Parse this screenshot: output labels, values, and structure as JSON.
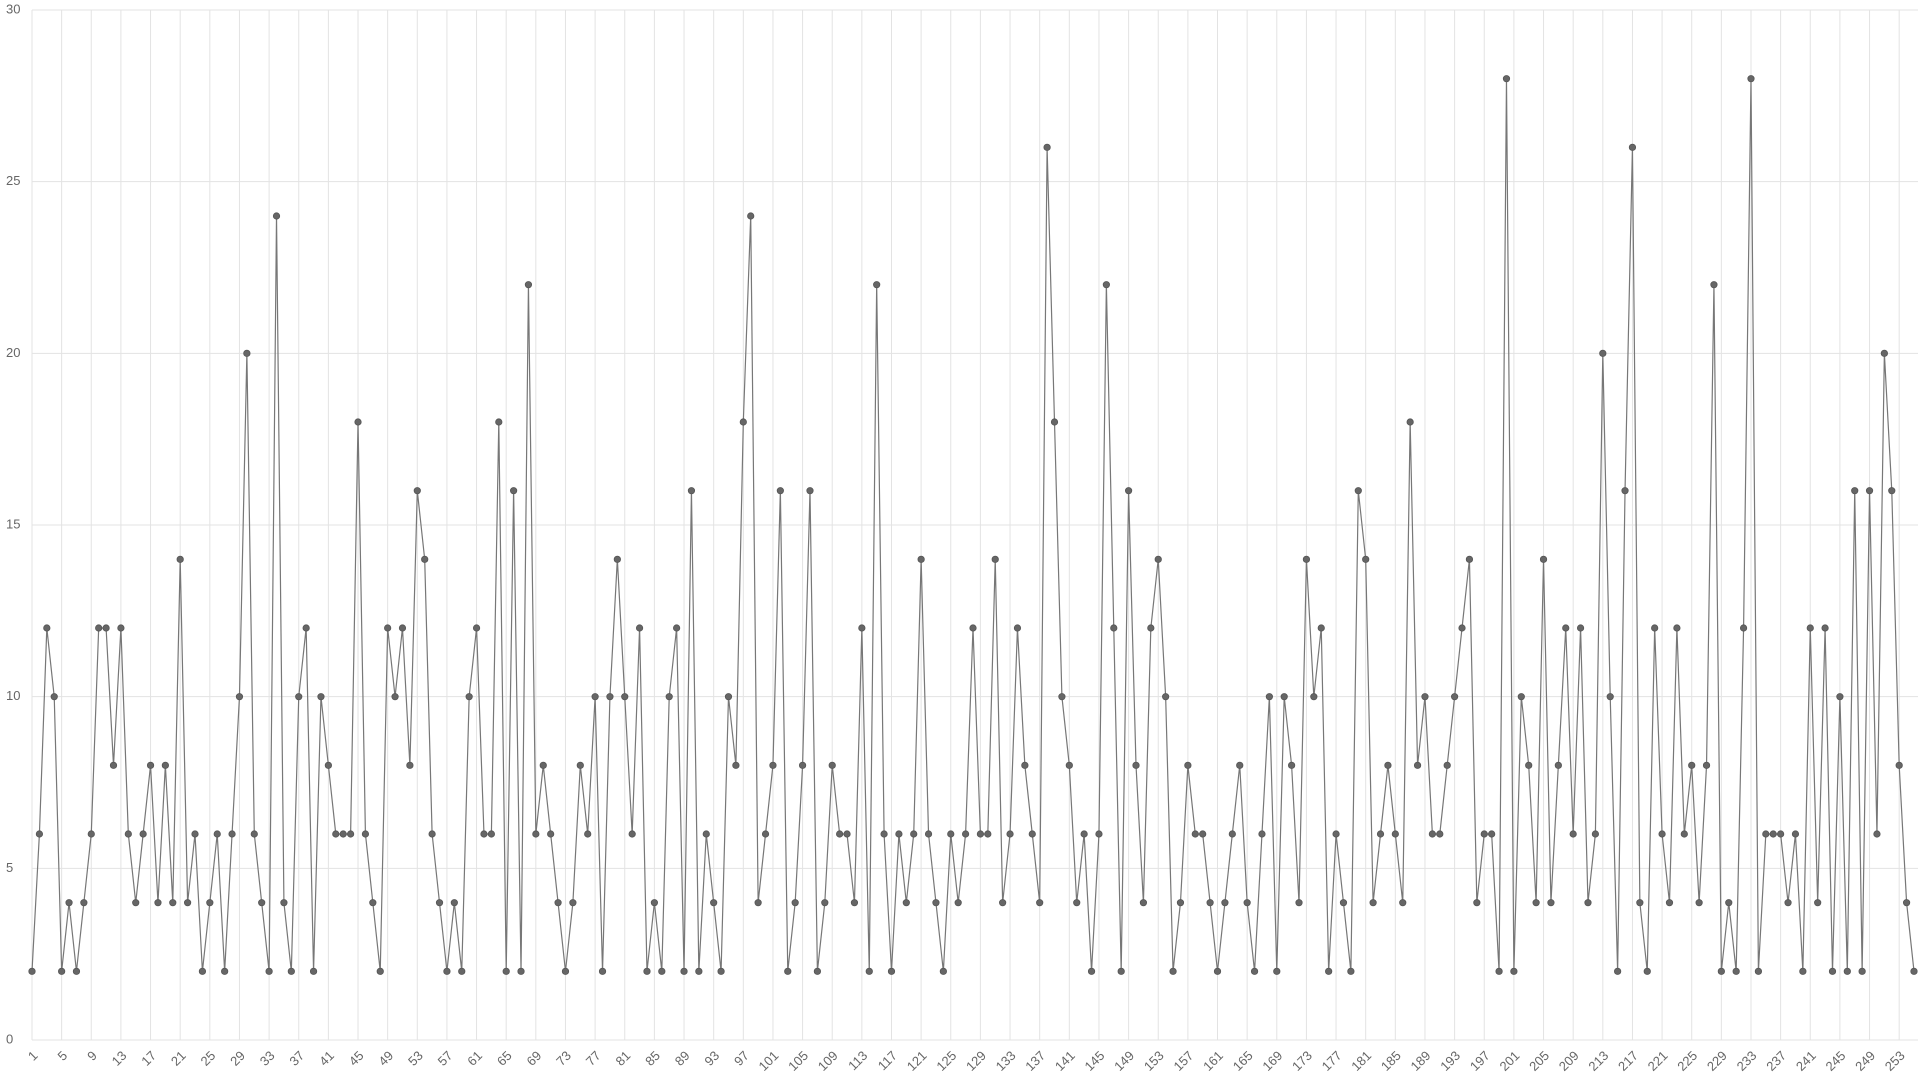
{
  "chart_data": {
    "type": "line",
    "categories": [
      "1",
      null,
      null,
      null,
      "5",
      null,
      null,
      null,
      "9",
      null,
      null,
      null,
      "13",
      null,
      null,
      null,
      "17",
      null,
      null,
      null,
      "21",
      null,
      null,
      null,
      "25",
      null,
      null,
      null,
      "29",
      null,
      null,
      null,
      "33",
      null,
      null,
      null,
      "37",
      null,
      null,
      null,
      "41",
      null,
      null,
      null,
      "45",
      null,
      null,
      null,
      "49",
      null,
      null,
      null,
      "53",
      null,
      null,
      null,
      "57",
      null,
      null,
      null,
      "61",
      null,
      null,
      null,
      "65",
      null,
      null,
      null,
      "69",
      null,
      null,
      null,
      "73",
      null,
      null,
      null,
      "77",
      null,
      null,
      null,
      "81",
      null,
      null,
      null,
      "85",
      null,
      null,
      null,
      "89",
      null,
      null,
      null,
      "93",
      null,
      null,
      null,
      "97",
      null,
      null,
      null,
      "101",
      null,
      null,
      null,
      "105",
      null,
      null,
      null,
      "109",
      null,
      null,
      null,
      "113",
      null,
      null,
      null,
      "117",
      null,
      null,
      null,
      "121",
      null,
      null,
      null,
      "125",
      null,
      null,
      null,
      "129",
      null,
      null,
      null,
      "133",
      null,
      null,
      null,
      "137",
      null,
      null,
      null,
      "141",
      null,
      null,
      null,
      "145",
      null,
      null,
      null,
      "149",
      null,
      null,
      null,
      "153",
      null,
      null,
      null,
      "157",
      null,
      null,
      null,
      "161",
      null,
      null,
      null,
      "165",
      null,
      null,
      null,
      "169",
      null,
      null,
      null,
      "173",
      null,
      null,
      null,
      "177",
      null,
      null,
      null,
      "181",
      null,
      null,
      null,
      "185",
      null,
      null,
      null,
      "189",
      null,
      null,
      null,
      "193",
      null,
      null,
      null,
      "197",
      null,
      null,
      null,
      "201",
      null,
      null,
      null,
      "205",
      null,
      null,
      null,
      "209",
      null,
      null,
      null,
      "213",
      null,
      null,
      null,
      "217",
      null,
      null,
      null,
      "221",
      null,
      null,
      null,
      "225",
      null,
      null,
      null,
      "229",
      null,
      null,
      null,
      "233",
      null,
      null,
      null,
      "237",
      null,
      null,
      null,
      "241",
      null,
      null,
      null,
      "245",
      null,
      null,
      null,
      "249",
      null,
      null,
      null,
      "253",
      null,
      null
    ],
    "values": [
      2,
      6,
      12,
      10,
      2,
      4,
      2,
      4,
      6,
      12,
      12,
      8,
      12,
      6,
      4,
      6,
      8,
      4,
      8,
      4,
      14,
      4,
      6,
      2,
      4,
      6,
      2,
      6,
      10,
      20,
      6,
      4,
      2,
      24,
      4,
      2,
      10,
      12,
      2,
      10,
      8,
      6,
      6,
      6,
      18,
      6,
      4,
      2,
      12,
      10,
      12,
      8,
      16,
      14,
      6,
      4,
      2,
      4,
      2,
      10,
      12,
      6,
      6,
      18,
      2,
      16,
      2,
      22,
      6,
      8,
      6,
      4,
      2,
      4,
      8,
      6,
      10,
      2,
      10,
      14,
      10,
      6,
      12,
      2,
      4,
      2,
      10,
      12,
      2,
      16,
      2,
      6,
      4,
      2,
      10,
      8,
      18,
      24,
      4,
      6,
      8,
      16,
      2,
      4,
      8,
      16,
      2,
      4,
      8,
      6,
      6,
      4,
      12,
      2,
      22,
      6,
      2,
      6,
      4,
      6,
      14,
      6,
      4,
      2,
      6,
      4,
      6,
      12,
      6,
      6,
      14,
      4,
      6,
      12,
      8,
      6,
      4,
      26,
      18,
      10,
      8,
      4,
      6,
      2,
      6,
      22,
      12,
      2,
      16,
      8,
      4,
      12,
      14,
      10,
      2,
      4,
      8,
      6,
      6,
      4,
      2,
      4,
      6,
      8,
      4,
      2,
      6,
      10,
      2,
      10,
      8,
      4,
      14,
      10,
      12,
      2,
      6,
      4,
      2,
      16,
      14,
      4,
      6,
      8,
      6,
      4,
      18,
      8,
      10,
      6,
      6,
      8,
      10,
      12,
      14,
      4,
      6,
      6,
      2,
      28,
      2,
      10,
      8,
      4,
      14,
      4,
      8,
      12,
      6,
      12,
      4,
      6,
      20,
      10,
      2,
      16,
      26,
      4,
      2,
      12,
      6,
      4,
      12,
      6,
      8,
      4,
      8,
      22,
      2,
      4,
      2,
      12,
      28,
      2,
      6,
      6,
      6,
      4,
      6,
      2,
      12,
      4,
      12,
      2,
      10,
      2,
      16,
      2,
      16,
      6,
      20,
      16,
      8,
      4,
      2
    ],
    "color": "#777777",
    "point_color": "#666666",
    "ylim": [
      0,
      30
    ],
    "yticks": [
      0,
      5,
      10,
      15,
      20,
      25,
      30
    ],
    "grid": true
  }
}
